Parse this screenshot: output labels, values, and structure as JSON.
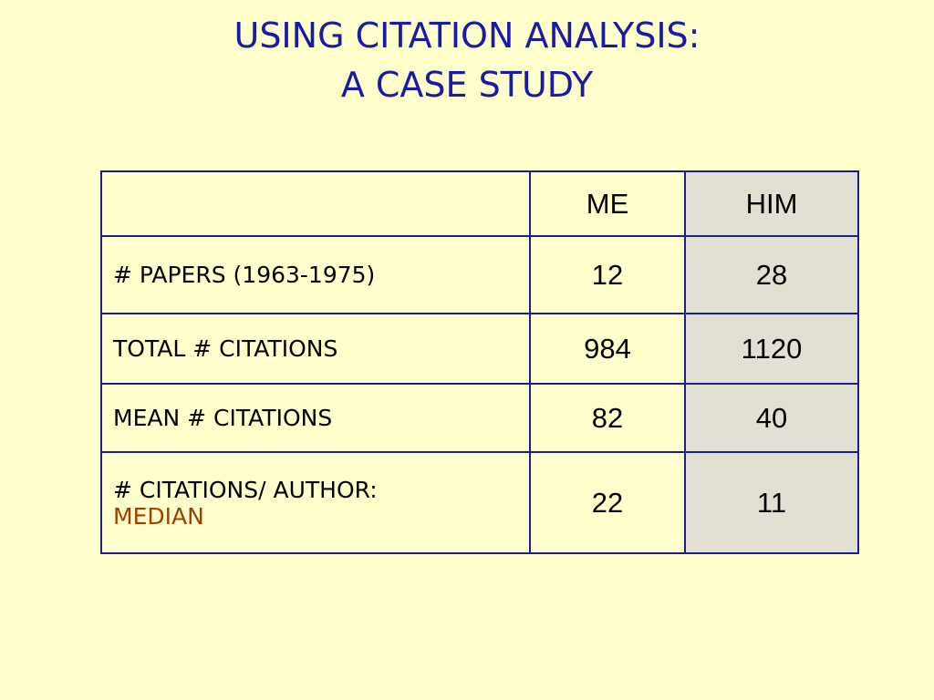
{
  "slide": {
    "title": [
      "USING CITATION ANALYSIS:",
      "A CASE STUDY"
    ]
  },
  "table": {
    "header": [
      "ME",
      "HIM"
    ],
    "rows": [
      {
        "label": [
          "# PAPERS (1963-1975)"
        ],
        "values": [
          12,
          28
        ]
      },
      {
        "label": [
          "TOTAL # CITATIONS"
        ],
        "values": [
          984,
          1120
        ]
      },
      {
        "label": [
          "MEAN # CITATIONS"
        ],
        "values": [
          82,
          40
        ]
      },
      {
        "label": [
          "# CITATIONS/ AUTHOR:",
          "MEDIAN"
        ],
        "values": [
          22,
          11
        ]
      }
    ]
  }
}
